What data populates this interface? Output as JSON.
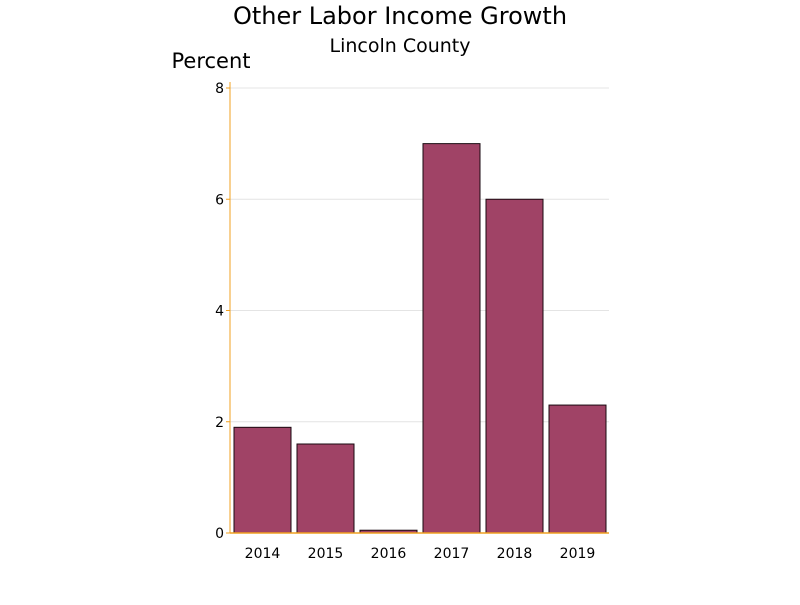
{
  "chart_data": {
    "type": "bar",
    "title": "Other Labor Income Growth",
    "subtitle": "Lincoln County",
    "xlabel": "",
    "ylabel": "Percent",
    "categories": [
      "2014",
      "2015",
      "2016",
      "2017",
      "2018",
      "2019"
    ],
    "values": [
      1.9,
      1.6,
      0.05,
      7.0,
      6.0,
      2.3
    ],
    "ylim": [
      0,
      8
    ],
    "yticks": [
      0,
      2,
      4,
      6,
      8
    ],
    "grid": true,
    "legend": "none"
  },
  "colors": {
    "bar_fill": "#a04366",
    "bar_stroke": "#1a0a10",
    "axis": "#f0a020",
    "grid": "#e4e4e4"
  }
}
